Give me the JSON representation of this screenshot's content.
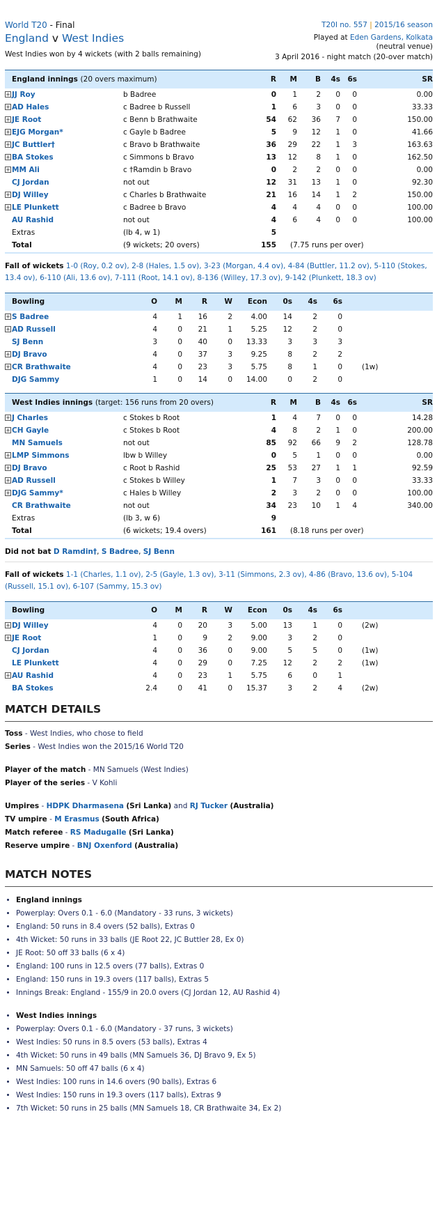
{
  "header": {
    "series": "World T20",
    "stage": "Final",
    "team1": "England",
    "vs": "v",
    "team2": "West Indies",
    "result": "West Indies won by 4 wickets (with 2 balls remaining)",
    "match_no": "T20I no. 557",
    "season": "2015/16 season",
    "played_at_prefix": "Played at",
    "venue": "Eden Gardens, Kolkata",
    "venue_note": "(neutral venue)",
    "date": "3 April 2016 - night match (20-over match)"
  },
  "colors": {
    "link": "#1a63ad",
    "header_bg": "#d4eafc"
  },
  "bat_cols": [
    "R",
    "M",
    "B",
    "4s",
    "6s",
    "SR"
  ],
  "bowl_cols": [
    "O",
    "M",
    "R",
    "W",
    "Econ",
    "0s",
    "4s",
    "6s"
  ],
  "eng_bat": {
    "title": "England innings",
    "sub": "(20 overs maximum)",
    "rows": [
      [
        "JJ Roy",
        "b Badree",
        "0",
        "1",
        "2",
        "0",
        "0",
        "0.00",
        true
      ],
      [
        "AD Hales",
        "c Badree b Russell",
        "1",
        "6",
        "3",
        "0",
        "0",
        "33.33",
        true
      ],
      [
        "JE Root",
        "c Benn b Brathwaite",
        "54",
        "62",
        "36",
        "7",
        "0",
        "150.00",
        true
      ],
      [
        "EJG Morgan*",
        "c Gayle b Badree",
        "5",
        "9",
        "12",
        "1",
        "0",
        "41.66",
        true
      ],
      [
        "JC Buttler†",
        "c Bravo b Brathwaite",
        "36",
        "29",
        "22",
        "1",
        "3",
        "163.63",
        true
      ],
      [
        "BA Stokes",
        "c Simmons b Bravo",
        "13",
        "12",
        "8",
        "1",
        "0",
        "162.50",
        true
      ],
      [
        "MM Ali",
        "c †Ramdin b Bravo",
        "0",
        "2",
        "2",
        "0",
        "0",
        "0.00",
        true
      ],
      [
        "CJ Jordan",
        "not out",
        "12",
        "31",
        "13",
        "1",
        "0",
        "92.30",
        false
      ],
      [
        "DJ Willey",
        "c Charles b Brathwaite",
        "21",
        "16",
        "14",
        "1",
        "2",
        "150.00",
        true
      ],
      [
        "LE Plunkett",
        "c Badree b Bravo",
        "4",
        "4",
        "4",
        "0",
        "0",
        "100.00",
        true
      ],
      [
        "AU Rashid",
        "not out",
        "4",
        "6",
        "4",
        "0",
        "0",
        "100.00",
        false
      ]
    ],
    "extras_label": "Extras",
    "extras_detail": "(lb 4, w 1)",
    "extras": "5",
    "total_label": "Total",
    "total_detail": "(9 wickets; 20 overs)",
    "total": "155",
    "rpo": "(7.75 runs per over)",
    "fow_label": "Fall of wickets",
    "fow": "1-0 (Roy, 0.2 ov), 2-8 (Hales, 1.5 ov), 3-23 (Morgan, 4.4 ov), 4-84 (Buttler, 11.2 ov), 5-110 (Stokes, 13.4 ov), 6-110 (Ali, 13.6 ov), 7-111 (Root, 14.1 ov), 8-136 (Willey, 17.3 ov), 9-142 (Plunkett, 18.3 ov)"
  },
  "wi_bowl": {
    "title": "Bowling",
    "rows": [
      [
        "S Badree",
        "4",
        "1",
        "16",
        "2",
        "4.00",
        "14",
        "2",
        "0",
        "",
        true
      ],
      [
        "AD Russell",
        "4",
        "0",
        "21",
        "1",
        "5.25",
        "12",
        "2",
        "0",
        "",
        true
      ],
      [
        "SJ Benn",
        "3",
        "0",
        "40",
        "0",
        "13.33",
        "3",
        "3",
        "3",
        "",
        false
      ],
      [
        "DJ Bravo",
        "4",
        "0",
        "37",
        "3",
        "9.25",
        "8",
        "2",
        "2",
        "",
        true
      ],
      [
        "CR Brathwaite",
        "4",
        "0",
        "23",
        "3",
        "5.75",
        "8",
        "1",
        "0",
        "(1w)",
        true
      ],
      [
        "DJG Sammy",
        "1",
        "0",
        "14",
        "0",
        "14.00",
        "0",
        "2",
        "0",
        "",
        false
      ]
    ]
  },
  "wi_bat": {
    "title": "West Indies innings",
    "sub": "(target: 156 runs from 20 overs)",
    "rows": [
      [
        "J Charles",
        "c Stokes b Root",
        "1",
        "4",
        "7",
        "0",
        "0",
        "14.28",
        true
      ],
      [
        "CH Gayle",
        "c Stokes b Root",
        "4",
        "8",
        "2",
        "1",
        "0",
        "200.00",
        true
      ],
      [
        "MN Samuels",
        "not out",
        "85",
        "92",
        "66",
        "9",
        "2",
        "128.78",
        false
      ],
      [
        "LMP Simmons",
        "lbw b Willey",
        "0",
        "5",
        "1",
        "0",
        "0",
        "0.00",
        true
      ],
      [
        "DJ Bravo",
        "c Root b Rashid",
        "25",
        "53",
        "27",
        "1",
        "1",
        "92.59",
        true
      ],
      [
        "AD Russell",
        "c Stokes b Willey",
        "1",
        "7",
        "3",
        "0",
        "0",
        "33.33",
        true
      ],
      [
        "DJG Sammy*",
        "c Hales b Willey",
        "2",
        "3",
        "2",
        "0",
        "0",
        "100.00",
        true
      ],
      [
        "CR Brathwaite",
        "not out",
        "34",
        "23",
        "10",
        "1",
        "4",
        "340.00",
        false
      ]
    ],
    "extras_label": "Extras",
    "extras_detail": "(lb 3, w 6)",
    "extras": "9",
    "total_label": "Total",
    "total_detail": "(6 wickets; 19.4 overs)",
    "total": "161",
    "rpo": "(8.18 runs per over)",
    "dnb_label": "Did not bat",
    "dnb": [
      "D Ramdin†",
      "S Badree",
      "SJ Benn"
    ],
    "fow_label": "Fall of wickets",
    "fow": "1-1 (Charles, 1.1 ov), 2-5 (Gayle, 1.3 ov), 3-11 (Simmons, 2.3 ov), 4-86 (Bravo, 13.6 ov), 5-104 (Russell, 15.1 ov), 6-107 (Sammy, 15.3 ov)"
  },
  "eng_bowl": {
    "title": "Bowling",
    "rows": [
      [
        "DJ Willey",
        "4",
        "0",
        "20",
        "3",
        "5.00",
        "13",
        "1",
        "0",
        "(2w)",
        true
      ],
      [
        "JE Root",
        "1",
        "0",
        "9",
        "2",
        "9.00",
        "3",
        "2",
        "0",
        "",
        true
      ],
      [
        "CJ Jordan",
        "4",
        "0",
        "36",
        "0",
        "9.00",
        "5",
        "5",
        "0",
        "(1w)",
        false
      ],
      [
        "LE Plunkett",
        "4",
        "0",
        "29",
        "0",
        "7.25",
        "12",
        "2",
        "2",
        "(1w)",
        false
      ],
      [
        "AU Rashid",
        "4",
        "0",
        "23",
        "1",
        "5.75",
        "6",
        "0",
        "1",
        "",
        true
      ],
      [
        "BA Stokes",
        "2.4",
        "0",
        "41",
        "0",
        "15.37",
        "3",
        "2",
        "4",
        "(2w)",
        false
      ]
    ]
  },
  "details": {
    "heading": "MATCH DETAILS",
    "toss_label": "Toss",
    "toss": "West Indies, who chose to field",
    "series_label": "Series",
    "series": "West Indies won the 2015/16 World T20",
    "potm_label": "Player of the match",
    "potm": "MN Samuels (West Indies)",
    "pots_label": "Player of the series",
    "pots": "V Kohli",
    "umpires_label": "Umpires",
    "umpire1": "HDPK Dharmasena",
    "umpire1_country": "(Sri Lanka)",
    "and": "and",
    "umpire2": "RJ Tucker",
    "umpire2_country": "(Australia)",
    "tv_label": "TV umpire",
    "tv": "M Erasmus",
    "tv_country": "(South Africa)",
    "ref_label": "Match referee",
    "ref": "RS Madugalle",
    "ref_country": "(Sri Lanka)",
    "reserve_label": "Reserve umpire",
    "reserve": "BNJ Oxenford",
    "reserve_country": "(Australia)"
  },
  "notes": {
    "heading": "MATCH NOTES",
    "eng_title": "England innings",
    "eng": [
      "Powerplay: Overs 0.1 - 6.0 (Mandatory - 33 runs, 3 wickets)",
      "England: 50 runs in 8.4 overs (52 balls), Extras 0",
      "4th Wicket: 50 runs in 33 balls (JE Root 22, JC Buttler 28, Ex 0)",
      "JE Root: 50 off 33 balls (6 x 4)",
      "England: 100 runs in 12.5 overs (77 balls), Extras 0",
      "England: 150 runs in 19.3 overs (117 balls), Extras 5"
    ],
    "break": "Innings Break: England - 155/9 in 20.0 overs (CJ Jordan 12, AU Rashid 4)",
    "wi_title": "West Indies innings",
    "wi": [
      "Powerplay: Overs 0.1 - 6.0 (Mandatory - 37 runs, 3 wickets)",
      "West Indies: 50 runs in 8.5 overs (53 balls), Extras 4",
      "4th Wicket: 50 runs in 49 balls (MN Samuels 36, DJ Bravo 9, Ex 5)",
      "MN Samuels: 50 off 47 balls (6 x 4)",
      "West Indies: 100 runs in 14.6 overs (90 balls), Extras 6",
      "West Indies: 150 runs in 19.3 overs (117 balls), Extras 9",
      "7th Wicket: 50 runs in 25 balls (MN Samuels 18, CR Brathwaite 34, Ex 2)"
    ]
  }
}
